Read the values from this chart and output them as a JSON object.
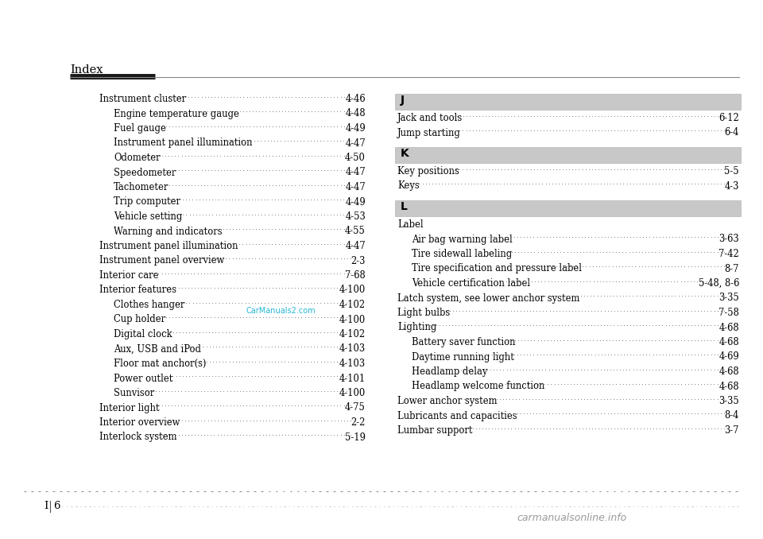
{
  "bg_color": "#ffffff",
  "page_title": "Index",
  "text_color": "#000000",
  "dot_color": "#666666",
  "watermark_color": "#00aacc",
  "left_entries": [
    {
      "text": "Instrument cluster",
      "page": "4-46",
      "indent": 0
    },
    {
      "text": "Engine temperature gauge",
      "page": "4-48",
      "indent": 1
    },
    {
      "text": "Fuel gauge",
      "page": "4-49",
      "indent": 1
    },
    {
      "text": "Instrument panel illumination",
      "page": "4-47",
      "indent": 1
    },
    {
      "text": "Odometer",
      "page": "4-50",
      "indent": 1
    },
    {
      "text": "Speedometer",
      "page": "4-47",
      "indent": 1
    },
    {
      "text": "Tachometer",
      "page": "4-47",
      "indent": 1
    },
    {
      "text": "Trip computer",
      "page": "4-49",
      "indent": 1
    },
    {
      "text": "Vehicle setting",
      "page": "4-53",
      "indent": 1
    },
    {
      "text": "Warning and indicators",
      "page": "4-55",
      "indent": 1
    },
    {
      "text": "Instrument panel illumination",
      "page": "4-47",
      "indent": 0
    },
    {
      "text": "Instrument panel overview",
      "page": "2-3",
      "indent": 0
    },
    {
      "text": "Interior care",
      "page": "7-68",
      "indent": 0
    },
    {
      "text": "Interior features",
      "page": "4-100",
      "indent": 0
    },
    {
      "text": "Clothes hanger",
      "page": "4-102",
      "indent": 1
    },
    {
      "text": "Cup holder",
      "page": "4-100",
      "indent": 1
    },
    {
      "text": "Digital clock",
      "page": "4-102",
      "indent": 1
    },
    {
      "text": "Aux, USB and iPod",
      "page": "4-103",
      "indent": 1
    },
    {
      "text": "Floor mat anchor(s)",
      "page": "4-103",
      "indent": 1
    },
    {
      "text": "Power outlet",
      "page": "4-101",
      "indent": 1
    },
    {
      "text": "Sunvisor",
      "page": "4-100",
      "indent": 1
    },
    {
      "text": "Interior light",
      "page": "4-75",
      "indent": 0
    },
    {
      "text": "Interior overview",
      "page": "2-2",
      "indent": 0
    },
    {
      "text": "Interlock system",
      "page": "5-19",
      "indent": 0
    }
  ],
  "right_sections": [
    {
      "letter": "J",
      "entries": [
        {
          "text": "Jack and tools",
          "page": "6-12",
          "indent": 0
        },
        {
          "text": "Jump starting",
          "page": "6-4",
          "indent": 0
        }
      ]
    },
    {
      "letter": "K",
      "entries": [
        {
          "text": "Key positions",
          "page": "5-5",
          "indent": 0
        },
        {
          "text": "Keys",
          "page": "4-3",
          "indent": 0
        }
      ]
    },
    {
      "letter": "L",
      "entries": [
        {
          "text": "Label",
          "page": "",
          "indent": 0
        },
        {
          "text": "Air bag warning label",
          "page": "3-63",
          "indent": 1
        },
        {
          "text": "Tire sidewall labeling",
          "page": "7-42",
          "indent": 1
        },
        {
          "text": "Tire specification and pressure label",
          "page": "8-7",
          "indent": 1
        },
        {
          "text": "Vehicle certification label",
          "page": "5-48, 8-6",
          "indent": 1
        },
        {
          "text": "Latch system, see lower anchor system",
          "page": "3-35",
          "indent": 0
        },
        {
          "text": "Light bulbs",
          "page": "7-58",
          "indent": 0
        },
        {
          "text": "Lighting",
          "page": "4-68",
          "indent": 0
        },
        {
          "text": "Battery saver function",
          "page": "4-68",
          "indent": 1
        },
        {
          "text": "Daytime running light",
          "page": "4-69",
          "indent": 1
        },
        {
          "text": "Headlamp delay",
          "page": "4-68",
          "indent": 1
        },
        {
          "text": "Headlamp welcome function",
          "page": "4-68",
          "indent": 1
        },
        {
          "text": "Lower anchor system",
          "page": "3-35",
          "indent": 0
        },
        {
          "text": "Lubricants and capacities",
          "page": "8-4",
          "indent": 0
        },
        {
          "text": "Lumbar support",
          "page": "3-7",
          "indent": 0
        }
      ]
    }
  ],
  "footer_text": "I",
  "footer_num": "6",
  "watermark_text": "CarManuals2.com"
}
